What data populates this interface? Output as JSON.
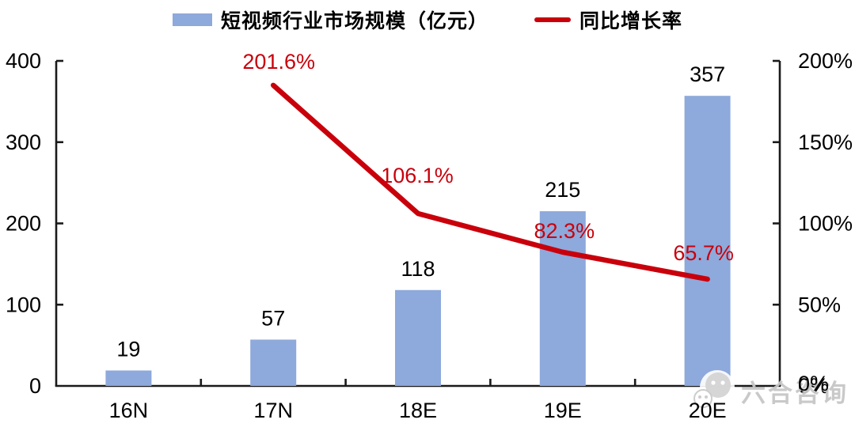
{
  "legend": {
    "items": [
      {
        "label": "短视频行业市场规模（亿元）",
        "swatch": "bar-swatch"
      },
      {
        "label": "同比增长率",
        "swatch": "line-swatch"
      }
    ]
  },
  "watermark": {
    "text": "六合咨询",
    "icon": "wechat-icon"
  },
  "colors": {
    "bar": "#8EA9DB",
    "line": "#C9000B",
    "axis": "#1A1A1A",
    "text": "#000000",
    "watermark": "#C7C7C7"
  },
  "chart_data": {
    "type": "combo-bar-line",
    "categories": [
      "16N",
      "17N",
      "18E",
      "19E",
      "20E"
    ],
    "series": [
      {
        "name": "短视频行业市场规模（亿元）",
        "type": "bar",
        "axis": "left",
        "values": [
          19,
          57,
          118,
          215,
          357
        ],
        "labels": [
          "19",
          "57",
          "118",
          "215",
          "357"
        ]
      },
      {
        "name": "同比增长率",
        "type": "line",
        "axis": "right",
        "start_category_index": 1,
        "values": [
          201.6,
          106.1,
          82.3,
          65.7
        ],
        "labels": [
          "201.6%",
          "106.1%",
          "82.3%",
          "65.7%"
        ]
      }
    ],
    "left_axis": {
      "min": 0,
      "max": 400,
      "ticks": [
        "0",
        "100",
        "200",
        "300",
        "400"
      ]
    },
    "right_axis": {
      "min": 0,
      "max": 200,
      "ticks": [
        "0%",
        "50%",
        "100%",
        "150%",
        "200%"
      ]
    },
    "legend_position": "top",
    "grid": false
  }
}
